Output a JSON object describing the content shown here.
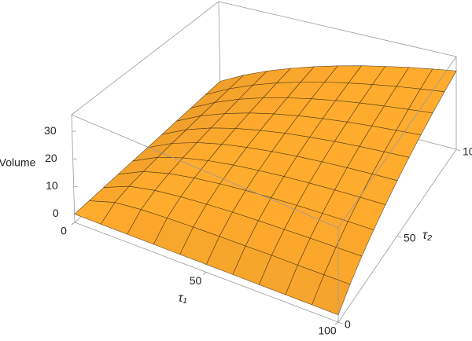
{
  "chart_data": {
    "type": "surface",
    "x_label": "τ₁",
    "y_label": "τ₂",
    "z_label": "Volume",
    "x": [
      0,
      10,
      20,
      30,
      40,
      50,
      60,
      70,
      80,
      90,
      100
    ],
    "y": [
      0,
      10,
      20,
      30,
      40,
      50,
      60,
      70,
      80,
      90,
      100
    ],
    "z": [
      [
        0,
        0,
        0,
        0,
        0,
        0,
        0,
        0,
        0,
        0,
        0
      ],
      [
        0,
        3,
        4,
        4.5,
        4.8,
        5,
        5.1,
        5.3,
        5.3,
        5.4,
        5.5
      ],
      [
        0,
        4,
        6,
        7.2,
        8,
        8.6,
        9,
        9.3,
        9.6,
        9.8,
        10
      ],
      [
        0,
        4.5,
        7.2,
        9,
        10.3,
        11.3,
        12,
        12.6,
        13.1,
        13.5,
        13.8
      ],
      [
        0,
        4.8,
        8,
        10.3,
        12,
        13.3,
        14.4,
        15.3,
        16,
        16.6,
        17.1
      ],
      [
        0,
        5,
        8.6,
        11.3,
        13.3,
        15,
        16.4,
        17.5,
        18.5,
        19.3,
        20
      ],
      [
        0,
        5.1,
        9,
        12,
        14.4,
        16.4,
        18,
        19.4,
        20.6,
        21.6,
        22.5
      ],
      [
        0,
        5.3,
        9.3,
        12.6,
        15.3,
        17.5,
        19.4,
        21,
        22.4,
        23.6,
        24.7
      ],
      [
        0,
        5.3,
        9.6,
        13.1,
        16,
        18.5,
        20.6,
        22.4,
        24,
        25.4,
        26.7
      ],
      [
        0,
        5.4,
        9.8,
        13.5,
        16.6,
        19.3,
        21.6,
        23.6,
        25.4,
        27,
        28.4
      ],
      [
        0,
        5.5,
        10,
        13.8,
        17.1,
        20,
        22.5,
        24.7,
        26.7,
        28.4,
        30
      ]
    ],
    "xlim": [
      0,
      100
    ],
    "ylim": [
      0,
      100
    ],
    "zlim": [
      -3,
      36
    ],
    "xticks": [
      0,
      50,
      100
    ],
    "yticks": [
      0,
      50,
      100
    ],
    "zticks": [
      0,
      10,
      20,
      30
    ],
    "color": "#f9a62c",
    "mesh": true,
    "box": true
  }
}
